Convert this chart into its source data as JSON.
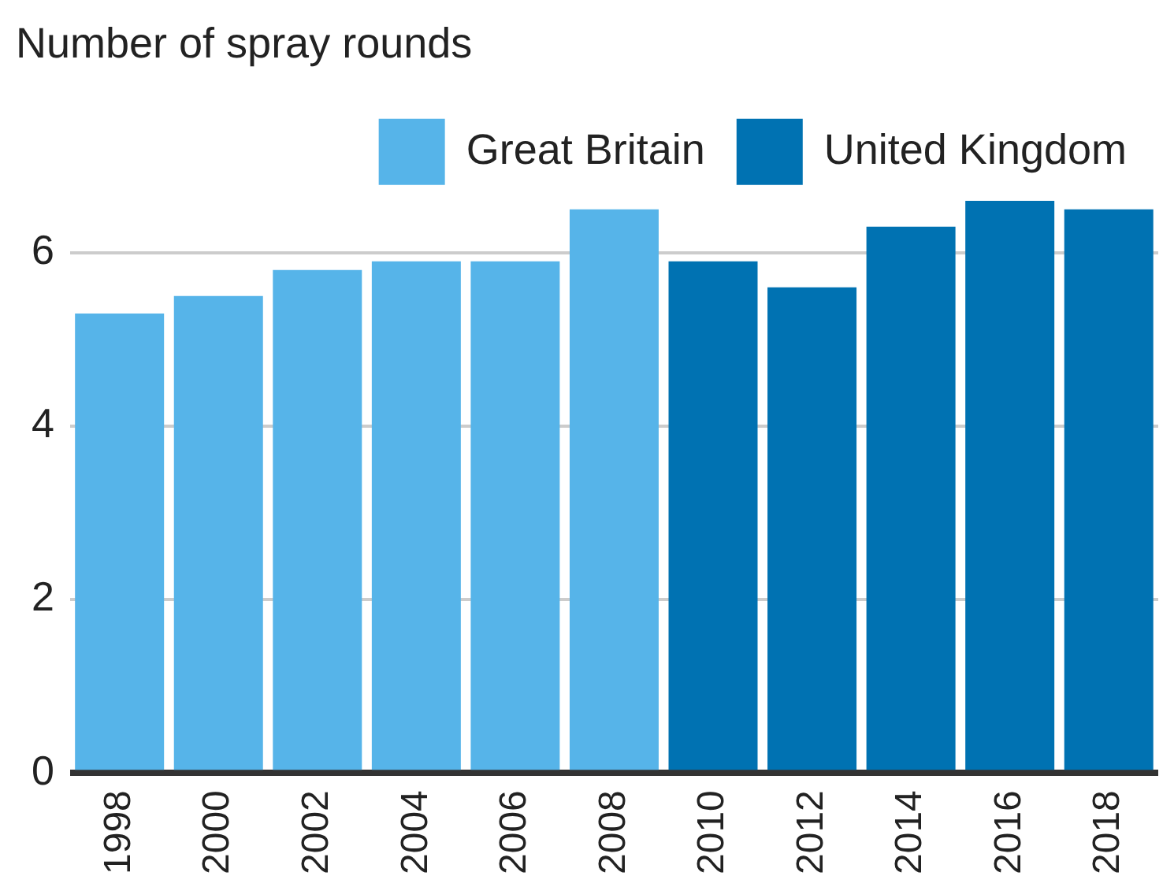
{
  "chart_data": {
    "type": "bar",
    "title": "Number of spray rounds",
    "categories": [
      "1998",
      "2000",
      "2002",
      "2004",
      "2006",
      "2008",
      "2010",
      "2012",
      "2014",
      "2016",
      "2018"
    ],
    "series": [
      {
        "name": "Great Britain",
        "color": "#56b4e9",
        "values": [
          5.3,
          5.5,
          5.8,
          5.9,
          5.9,
          6.5,
          null,
          null,
          null,
          null,
          null
        ]
      },
      {
        "name": "United Kingdom",
        "color": "#0072b2",
        "values": [
          null,
          null,
          null,
          null,
          null,
          null,
          5.9,
          5.6,
          6.3,
          6.6,
          6.5
        ]
      }
    ],
    "ylim": [
      0,
      6.6
    ],
    "yticks": [
      0,
      2,
      4,
      6
    ],
    "grid": "y",
    "legend": "top"
  }
}
